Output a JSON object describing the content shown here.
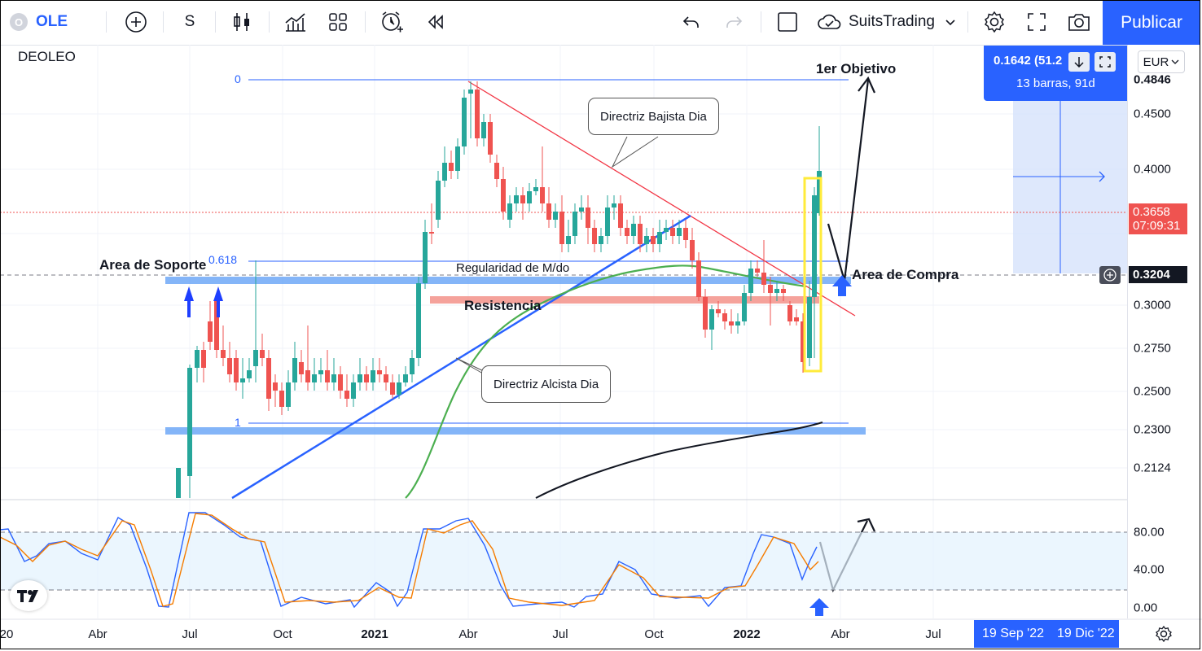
{
  "toolbar": {
    "symbol_badge": "O",
    "symbol": "OLE",
    "interval": "S",
    "layout_name": "SuitsTrading",
    "publish_label": "Publicar"
  },
  "chart": {
    "ticker": "DEOLEO",
    "currency": "EUR",
    "measure_line1": "0.1642 (51.2",
    "measure_line2": "13 barras, 91d",
    "fib_0": "0",
    "fib_618": "0.618",
    "fib_1": "1",
    "annotations": {
      "target": "1er Objetivo",
      "support": "Area de Soporte",
      "buy_zone": "Area de Compra",
      "regularity": "Regularidad de M/do",
      "resistance": "Resistencia",
      "bearish_callout": "Directriz Bajista Dia",
      "bullish_callout": "Directriz Alcista Dia"
    }
  },
  "price_axis": {
    "labels": [
      "0.4500",
      "0.4000",
      "0.3000",
      "0.2750",
      "0.2500",
      "0.2300",
      "0.2124"
    ],
    "top_label": "0.4846",
    "last_price": "0.3658",
    "countdown": "07:09:31",
    "crosshair_price": "0.3204",
    "colors": {
      "last_price": "#ef5350",
      "accent": "#2962ff",
      "crosshair": "#131722"
    }
  },
  "oscillator_axis": {
    "labels": [
      "80.00",
      "40.00",
      "0.00"
    ]
  },
  "time_axis": {
    "labels": [
      "20",
      "Abr",
      "Jul",
      "Oct",
      "2021",
      "Abr",
      "Jul",
      "Oct",
      "2022",
      "Abr",
      "Jul"
    ],
    "range_start": "19 Sep '22",
    "range_end": "19 Dic '22"
  },
  "icons": [
    "add-symbol-icon",
    "candles-icon",
    "indicators-icon",
    "templates-icon",
    "alert-icon",
    "replay-icon",
    "undo-icon",
    "redo-icon",
    "layout-icon",
    "cloud-icon",
    "chevron-down-icon",
    "settings-icon",
    "fullscreen-icon",
    "camera-icon",
    "measure-down-icon",
    "measure-reset-icon",
    "crosshair-plus-icon",
    "timezone-gear-icon",
    "tradingview-logo-icon"
  ]
}
